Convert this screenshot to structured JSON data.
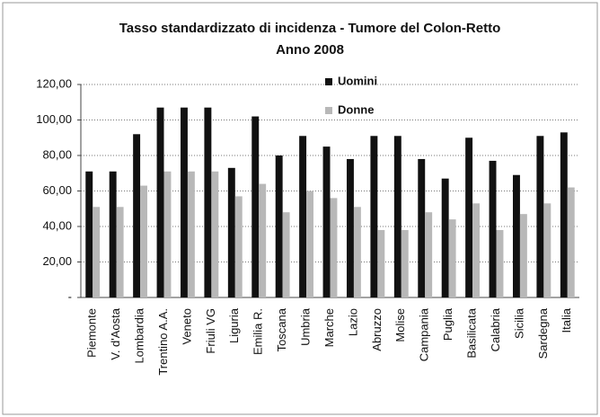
{
  "chart_data": {
    "type": "bar",
    "title": "Tasso standardizzato di incidenza - Tumore del Colon-Retto",
    "subtitle": "Anno 2008",
    "categories": [
      "Piemonte",
      "V. d'Aosta",
      "Lombardia",
      "Trentino A.A.",
      "Veneto",
      "Friuli VG",
      "Liguria",
      "Emilia R.",
      "Toscana",
      "Umbria",
      "Marche",
      "Lazio",
      "Abruzzo",
      "Molise",
      "Campania",
      "Puglia",
      "Basilicata",
      "Calabria",
      "Sicilia",
      "Sardegna",
      "Italia"
    ],
    "series": [
      {
        "name": "Uomini",
        "color": "#111111",
        "values": [
          71,
          71,
          92,
          107,
          107,
          107,
          73,
          102,
          80,
          91,
          85,
          78,
          91,
          91,
          78,
          67,
          90,
          77,
          69,
          91,
          93
        ]
      },
      {
        "name": "Donne",
        "color": "#b8b8b8",
        "values": [
          51,
          51,
          63,
          71,
          71,
          71,
          57,
          64,
          48,
          60,
          56,
          51,
          38,
          38,
          48,
          44,
          53,
          38,
          47,
          53,
          62
        ]
      }
    ],
    "ylim": [
      0,
      120
    ],
    "yticks": [
      {
        "value": 0,
        "label": "-"
      },
      {
        "value": 20,
        "label": "20,00"
      },
      {
        "value": 40,
        "label": "40,00"
      },
      {
        "value": 60,
        "label": "60,00"
      },
      {
        "value": 80,
        "label": "80,00"
      },
      {
        "value": 100,
        "label": "100,00"
      },
      {
        "value": 120,
        "label": "120,00"
      }
    ],
    "grid": true
  }
}
